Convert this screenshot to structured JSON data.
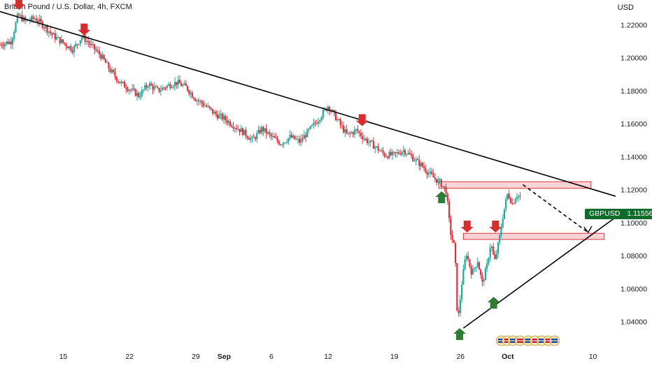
{
  "header": {
    "title": "British Pound / U.S. Dollar, 4h, FXCM",
    "currency": "USD"
  },
  "price_label": {
    "symbol": "GBPUSD",
    "value": "1.11556",
    "color": "#0f6b2a"
  },
  "colors": {
    "up": "#26a69a",
    "down": "#e0313a",
    "trendline": "#000000",
    "zone_fill": "#f7c5ca",
    "zone_border": "#e0313a",
    "arrow_down": "#d32f2f",
    "arrow_up": "#2e7d32"
  },
  "chart_data": {
    "type": "candlestick",
    "title": "British Pound / U.S. Dollar, 4h, FXCM",
    "ylabel": "USD",
    "ylim": [
      1.025,
      1.235
    ],
    "y_ticks": [
      "1.22000",
      "1.20000",
      "1.18000",
      "1.16000",
      "1.14000",
      "1.12000",
      "1.10000",
      "1.08000",
      "1.06000",
      "1.04000"
    ],
    "x_ticks": [
      {
        "label": "15",
        "day": 15
      },
      {
        "label": "22",
        "day": 22
      },
      {
        "label": "29",
        "day": 29
      },
      {
        "label": "Sep",
        "day": 32,
        "bold": true
      },
      {
        "label": "6",
        "day": 37
      },
      {
        "label": "12",
        "day": 43
      },
      {
        "label": "19",
        "day": 50
      },
      {
        "label": "26",
        "day": 57
      },
      {
        "label": "Oct",
        "day": 62,
        "bold": true
      },
      {
        "label": "10",
        "day": 71
      }
    ],
    "xlim": [
      8.3,
      73.4
    ],
    "price_path": [
      [
        8.3,
        1.208
      ],
      [
        9.5,
        1.21
      ],
      [
        10.2,
        1.226
      ],
      [
        11,
        1.222
      ],
      [
        12,
        1.224
      ],
      [
        13,
        1.219
      ],
      [
        14,
        1.213
      ],
      [
        15,
        1.209
      ],
      [
        16,
        1.205
      ],
      [
        17,
        1.213
      ],
      [
        18,
        1.207
      ],
      [
        19,
        1.201
      ],
      [
        20,
        1.192
      ],
      [
        21,
        1.185
      ],
      [
        22,
        1.181
      ],
      [
        23,
        1.177
      ],
      [
        24,
        1.184
      ],
      [
        25,
        1.18
      ],
      [
        26,
        1.183
      ],
      [
        27,
        1.185
      ],
      [
        28,
        1.182
      ],
      [
        29,
        1.175
      ],
      [
        30,
        1.171
      ],
      [
        31,
        1.166
      ],
      [
        32,
        1.163
      ],
      [
        33,
        1.159
      ],
      [
        34,
        1.155
      ],
      [
        35,
        1.15
      ],
      [
        36,
        1.157
      ],
      [
        37,
        1.152
      ],
      [
        38,
        1.148
      ],
      [
        39,
        1.152
      ],
      [
        40,
        1.149
      ],
      [
        41,
        1.156
      ],
      [
        42,
        1.163
      ],
      [
        43,
        1.171
      ],
      [
        44,
        1.162
      ],
      [
        45,
        1.153
      ],
      [
        46,
        1.156
      ],
      [
        47,
        1.15
      ],
      [
        48,
        1.146
      ],
      [
        49,
        1.141
      ],
      [
        50,
        1.141
      ],
      [
        51,
        1.144
      ],
      [
        52,
        1.139
      ],
      [
        53,
        1.134
      ],
      [
        54,
        1.128
      ],
      [
        54.9,
        1.124
      ],
      [
        55.5,
        1.119
      ],
      [
        55.9,
        1.095
      ],
      [
        56.4,
        1.084
      ],
      [
        56.7,
        1.038
      ],
      [
        57.1,
        1.062
      ],
      [
        57.6,
        1.082
      ],
      [
        58.2,
        1.069
      ],
      [
        58.8,
        1.077
      ],
      [
        59.3,
        1.063
      ],
      [
        59.8,
        1.074
      ],
      [
        60.2,
        1.088
      ],
      [
        60.6,
        1.076
      ],
      [
        61.1,
        1.09
      ],
      [
        61.5,
        1.105
      ],
      [
        62,
        1.118
      ],
      [
        62.5,
        1.111
      ],
      [
        62.9,
        1.117
      ],
      [
        63.3,
        1.1156
      ]
    ],
    "trendlines": [
      {
        "name": "descending-resistance",
        "from": [
          8.3,
          1.228
        ],
        "to": [
          73.4,
          1.116
        ],
        "dashed": false
      },
      {
        "name": "ascending-support",
        "from": [
          57.3,
          1.036
        ],
        "to": [
          74.3,
          1.107
        ],
        "dashed": false
      },
      {
        "name": "projection-drop",
        "from": [
          63.6,
          1.123
        ],
        "to": [
          70.5,
          1.094
        ],
        "dashed": true
      }
    ],
    "zones": [
      {
        "name": "upper-resistance-zone",
        "x_range": [
          54.7,
          70.8
        ],
        "y_range": [
          1.1208,
          1.1248
        ]
      },
      {
        "name": "lower-resistance-zone",
        "x_range": [
          57.3,
          72.2
        ],
        "y_range": [
          1.0898,
          1.0935
        ]
      }
    ],
    "arrows_down": [
      {
        "name": "sell-arrow-1",
        "x": 10.3,
        "y": 1.229
      },
      {
        "name": "sell-arrow-2",
        "x": 17.2,
        "y": 1.2135
      },
      {
        "name": "sell-arrow-3",
        "x": 46.6,
        "y": 1.1585
      },
      {
        "name": "sell-arrow-4",
        "x": 57.7,
        "y": 1.094
      },
      {
        "name": "sell-arrow-5",
        "x": 60.7,
        "y": 1.094
      }
    ],
    "arrows_up": [
      {
        "name": "buy-arrow-1",
        "x": 55.0,
        "y": 1.119
      },
      {
        "name": "buy-arrow-2",
        "x": 56.9,
        "y": 1.036
      },
      {
        "name": "buy-arrow-3",
        "x": 60.5,
        "y": 1.055
      }
    ]
  }
}
